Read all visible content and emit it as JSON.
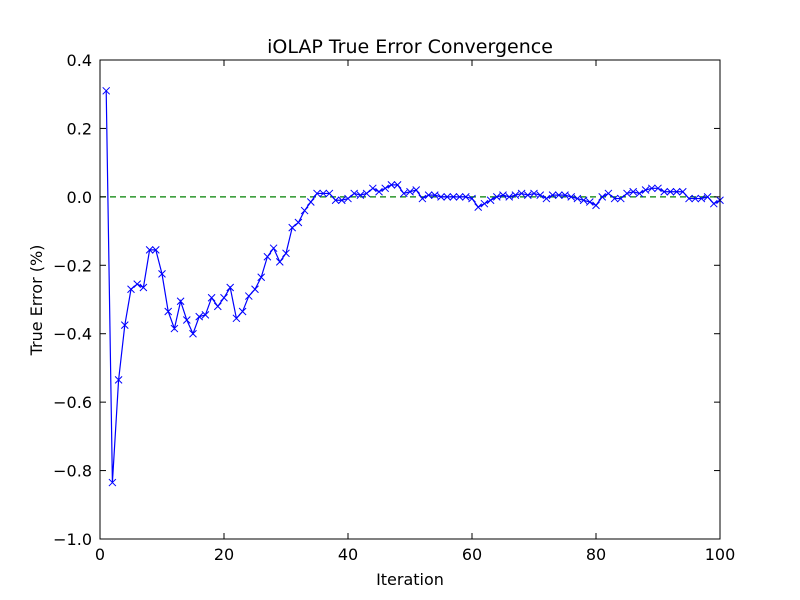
{
  "chart_data": {
    "type": "line",
    "title": "iOLAP True Error Convergence",
    "xlabel": "Iteration",
    "ylabel": "True Error (%)",
    "xlim": [
      0,
      100
    ],
    "ylim": [
      -1.0,
      0.4
    ],
    "xticks": [
      0,
      20,
      40,
      60,
      80,
      100
    ],
    "yticks": [
      -1.0,
      -0.8,
      -0.6,
      -0.4,
      -0.2,
      0.0,
      0.2,
      0.4
    ],
    "xtick_labels": [
      "0",
      "20",
      "40",
      "60",
      "80",
      "100"
    ],
    "ytick_labels": [
      "−1.0",
      "−0.8",
      "−0.6",
      "−0.4",
      "−0.2",
      "0.0",
      "0.2",
      "0.4"
    ],
    "grid": false,
    "reference_line": {
      "y": 0.0,
      "style": "dashed",
      "color": "#008000"
    },
    "series": [
      {
        "color": "#0000ff",
        "marker": "x",
        "x": [
          1,
          2,
          3,
          4,
          5,
          6,
          7,
          8,
          9,
          10,
          11,
          12,
          13,
          14,
          15,
          16,
          17,
          18,
          19,
          20,
          21,
          22,
          23,
          24,
          25,
          26,
          27,
          28,
          29,
          30,
          31,
          32,
          33,
          34,
          35,
          36,
          37,
          38,
          39,
          40,
          41,
          42,
          43,
          44,
          45,
          46,
          47,
          48,
          49,
          50,
          51,
          52,
          53,
          54,
          55,
          56,
          57,
          58,
          59,
          60,
          61,
          62,
          63,
          64,
          65,
          66,
          67,
          68,
          69,
          70,
          71,
          72,
          73,
          74,
          75,
          76,
          77,
          78,
          79,
          80,
          81,
          82,
          83,
          84,
          85,
          86,
          87,
          88,
          89,
          90,
          91,
          92,
          93,
          94,
          95,
          96,
          97,
          98,
          99,
          100
        ],
        "y": [
          0.31,
          -0.835,
          -0.535,
          -0.375,
          -0.27,
          -0.255,
          -0.265,
          -0.155,
          -0.155,
          -0.225,
          -0.335,
          -0.385,
          -0.305,
          -0.36,
          -0.4,
          -0.35,
          -0.345,
          -0.295,
          -0.32,
          -0.295,
          -0.265,
          -0.355,
          -0.335,
          -0.29,
          -0.27,
          -0.235,
          -0.175,
          -0.15,
          -0.19,
          -0.165,
          -0.09,
          -0.075,
          -0.04,
          -0.015,
          0.01,
          0.01,
          0.01,
          -0.01,
          -0.01,
          -0.005,
          0.01,
          0.005,
          0.01,
          0.025,
          0.015,
          0.025,
          0.035,
          0.035,
          0.01,
          0.015,
          0.02,
          -0.005,
          0.005,
          0.005,
          0.0,
          0.0,
          0.0,
          0.0,
          0.0,
          -0.005,
          -0.03,
          -0.02,
          -0.01,
          0.0,
          0.005,
          0.0,
          0.005,
          0.01,
          0.005,
          0.01,
          0.005,
          -0.005,
          0.005,
          0.005,
          0.005,
          0.0,
          -0.005,
          -0.01,
          -0.015,
          -0.025,
          0.0,
          0.01,
          -0.005,
          -0.005,
          0.01,
          0.015,
          0.01,
          0.02,
          0.025,
          0.025,
          0.015,
          0.015,
          0.015,
          0.015,
          -0.005,
          -0.005,
          -0.005,
          0.0,
          -0.02,
          -0.01
        ]
      }
    ]
  }
}
